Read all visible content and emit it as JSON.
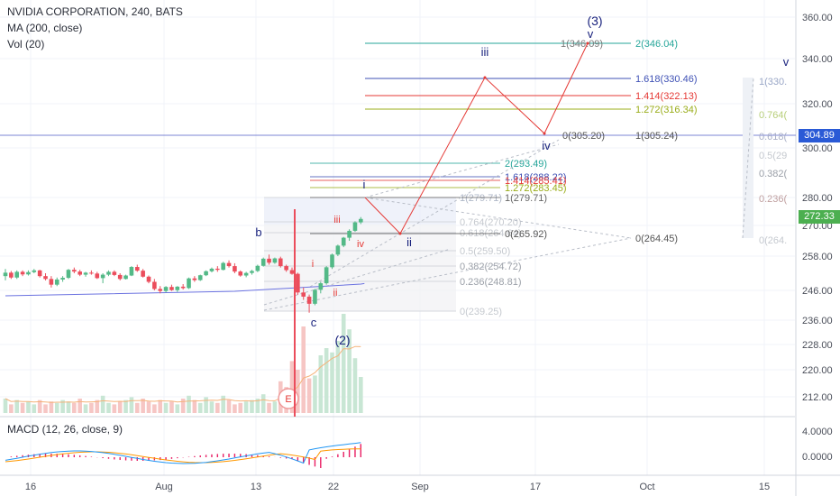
{
  "legend": {
    "symbol": "NVIDIA CORPORATION, 240, BATS",
    "ma": "MA (200, close)",
    "vol": "Vol (20)",
    "macd": "MACD (12, 26, close, 9)"
  },
  "price_axis": {
    "ticks": [
      "360.00",
      "340.00",
      "320.00",
      "300.00",
      "280.00",
      "270.00",
      "258.00",
      "246.00",
      "236.00",
      "228.00",
      "220.00",
      "212.00"
    ],
    "current_price": "272.33",
    "crosshair_price": "304.89",
    "current_price_color": "#4caf50",
    "crosshair_color": "#2a5ad6"
  },
  "macd_axis": {
    "ticks": [
      "4.0000",
      "0.0000"
    ]
  },
  "time_axis": {
    "labels": [
      "16",
      "Aug",
      "13",
      "22",
      "Sep",
      "17",
      "Oct",
      "15"
    ]
  },
  "wave_labels": {
    "b": "b",
    "c": "c",
    "two": "(2)",
    "three": "(3)",
    "i_blue": "i",
    "ii_blue": "ii",
    "iii_blue": "iii",
    "iv_blue": "iv",
    "v_blue": "v",
    "v_right": "v",
    "i_red": "i",
    "ii_red": "ii",
    "iii_red": "iii",
    "iv_red": "iv"
  },
  "earnings_marker": "E",
  "fib_main": [
    {
      "label": "1(279.71)",
      "color": "#b0b8c8"
    },
    {
      "label": "0.764(270.20)",
      "color": "#c5c9cf"
    },
    {
      "label": "0.618(264.64)",
      "color": "#c5c9cf"
    },
    {
      "label": "0.5(259.50)",
      "color": "#c5c9cf"
    },
    {
      "label": "0.382(254.72)",
      "color": "#9ba0a8"
    },
    {
      "label": "0.236(248.81)",
      "color": "#9ba0a8"
    },
    {
      "label": "0(239.25)",
      "color": "#c5c9cf"
    }
  ],
  "fib_ext": [
    {
      "label": "2(293.49)",
      "color": "#26a69a"
    },
    {
      "label": "1.618(288.22)",
      "color": "#3f51b5"
    },
    {
      "label": "1.414(285.41)",
      "color": "#e53935"
    },
    {
      "label": "1.272(283.45)",
      "color": "#9aad1a"
    },
    {
      "label": "1(279.71)",
      "color": "#666666"
    },
    {
      "label": "0(265.92)",
      "color": "#555555"
    }
  ],
  "fib_top": [
    {
      "label": "1(346.09)",
      "color": "#777777"
    },
    {
      "label": "2(346.04)",
      "color": "#26a69a"
    },
    {
      "label": "1.618(330.46)",
      "color": "#3f51b5"
    },
    {
      "label": "1.414(322.13)",
      "color": "#e53935"
    },
    {
      "label": "1.272(316.34)",
      "color": "#9aad1a"
    },
    {
      "label": "0(305.20)",
      "color": "#555555"
    },
    {
      "label": "1(305.24)",
      "color": "#555555"
    }
  ],
  "fib_low_anchor": {
    "label": "0(264.45)"
  },
  "fib_right_faded": [
    {
      "label": "1(330.",
      "color": "#9aa7c7"
    },
    {
      "label": "0.764(",
      "color": "#b8cf7a"
    },
    {
      "label": "0.618(",
      "color": "#aab0c8"
    },
    {
      "label": "0.5(29",
      "color": "#c5c9cf"
    },
    {
      "label": "0.382(",
      "color": "#9ba0a8"
    },
    {
      "label": "0.236(",
      "color": "#c0a0a0"
    },
    {
      "label": "0(264.",
      "color": "#c5c9cf"
    }
  ],
  "chart_data": {
    "type": "candlestick",
    "title": "NVIDIA CORPORATION, 240, BATS",
    "ylim": [
      210,
      366
    ],
    "price_axis_ticks": [
      360,
      340,
      320,
      300,
      280,
      270,
      258,
      246,
      236,
      228,
      220,
      212
    ],
    "time_labels": [
      "16",
      "Aug",
      "13",
      "22",
      "Sep",
      "17",
      "Oct",
      "15"
    ],
    "candles": [
      [
        251,
        253.5,
        249.5,
        252.2
      ],
      [
        252.2,
        252.8,
        250,
        250.5
      ],
      [
        250.5,
        253,
        250,
        252.5
      ],
      [
        252.5,
        253,
        251,
        251.6
      ],
      [
        251.6,
        253,
        251.2,
        252.4
      ],
      [
        252.4,
        253.5,
        252,
        253
      ],
      [
        253,
        253.2,
        250.5,
        251
      ],
      [
        251,
        252,
        249.5,
        250
      ],
      [
        250,
        251,
        247,
        248
      ],
      [
        248,
        250.5,
        247.5,
        249.8
      ],
      [
        249.8,
        251,
        249,
        250.4
      ],
      [
        250.4,
        253.5,
        250,
        253.2
      ],
      [
        253.2,
        254,
        252,
        252.6
      ],
      [
        252.6,
        253.2,
        251,
        251.5
      ],
      [
        251.5,
        252.5,
        250.8,
        252.2
      ],
      [
        252.2,
        253,
        251.5,
        251.9
      ],
      [
        251.9,
        252.5,
        250,
        250.3
      ],
      [
        250.3,
        252,
        248.5,
        251.5
      ],
      [
        251.5,
        253,
        251,
        252.5
      ],
      [
        252.5,
        253,
        251,
        251.4
      ],
      [
        251.4,
        252,
        249.5,
        250
      ],
      [
        250,
        251.5,
        249.8,
        251.2
      ],
      [
        251.2,
        254.5,
        251,
        254.2
      ],
      [
        254.2,
        255,
        252.5,
        252.9
      ],
      [
        252.9,
        253.5,
        250.5,
        250.8
      ],
      [
        250.8,
        251.2,
        248.5,
        249
      ],
      [
        249,
        250,
        246,
        246.5
      ],
      [
        246.5,
        247.5,
        245,
        245.8
      ],
      [
        245.8,
        247.5,
        245.3,
        247.2
      ],
      [
        247.2,
        248,
        245.8,
        246.1
      ],
      [
        246.1,
        247.5,
        245.5,
        247.3
      ],
      [
        247.3,
        248.2,
        246.3,
        246.8
      ],
      [
        246.8,
        250.5,
        246.5,
        250.2
      ],
      [
        250.2,
        251,
        249,
        249.6
      ],
      [
        249.6,
        251.5,
        249.3,
        251.3
      ],
      [
        251.3,
        253,
        251,
        252.7
      ],
      [
        252.7,
        254,
        252.3,
        253.6
      ],
      [
        253.6,
        254.5,
        252.5,
        253.2
      ],
      [
        253.2,
        256,
        253,
        255.6
      ],
      [
        255.6,
        256.5,
        254,
        254.5
      ],
      [
        254.5,
        255.5,
        252,
        252.6
      ],
      [
        252.6,
        253,
        250.8,
        251.2
      ],
      [
        251.2,
        252.5,
        250.6,
        252.1
      ],
      [
        252.1,
        253.2,
        251.5,
        252.8
      ],
      [
        252.8,
        255,
        252.4,
        254.6
      ],
      [
        254.6,
        257.5,
        254.3,
        257.1
      ],
      [
        257.1,
        258.6,
        255,
        255.7
      ],
      [
        255.7,
        257.5,
        255.3,
        257.2
      ],
      [
        257.2,
        257.8,
        254,
        254.5
      ],
      [
        254.5,
        255,
        252.5,
        253.1
      ],
      [
        253.1,
        254,
        251.5,
        251.8
      ],
      [
        251.8,
        252.2,
        244.5,
        245.3
      ],
      [
        245.3,
        247,
        242.8,
        243.9
      ],
      [
        243.9,
        244.6,
        238.5,
        241.5
      ],
      [
        241.5,
        246.5,
        241,
        246.2
      ],
      [
        246.2,
        249,
        245,
        248.5
      ],
      [
        248.5,
        254.5,
        248,
        254.1
      ],
      [
        254.1,
        259,
        253.5,
        258.6
      ],
      [
        258.6,
        262.5,
        258,
        262.1
      ],
      [
        262.1,
        265.5,
        261.5,
        265.2
      ],
      [
        265.2,
        268.5,
        264,
        267.9
      ],
      [
        267.9,
        271.5,
        267.5,
        271.1
      ],
      [
        271.1,
        273,
        270.5,
        272.33
      ]
    ],
    "ma200": [
      [
        0,
        244.2
      ],
      [
        40,
        245.7
      ],
      [
        62,
        248.2
      ]
    ],
    "volume": [
      10,
      6,
      9,
      7,
      8,
      6,
      9,
      6,
      8,
      7,
      9,
      8,
      7,
      10,
      6,
      7,
      9,
      12,
      7,
      6,
      8,
      9,
      11,
      7,
      10,
      8,
      6,
      9,
      7,
      8,
      6,
      10,
      12,
      9,
      7,
      11,
      8,
      7,
      12,
      9,
      6,
      7,
      8,
      9,
      10,
      13,
      7,
      8,
      22,
      18,
      36,
      30,
      60,
      24,
      26,
      40,
      45,
      42,
      50,
      70,
      58,
      38,
      25
    ]
  }
}
